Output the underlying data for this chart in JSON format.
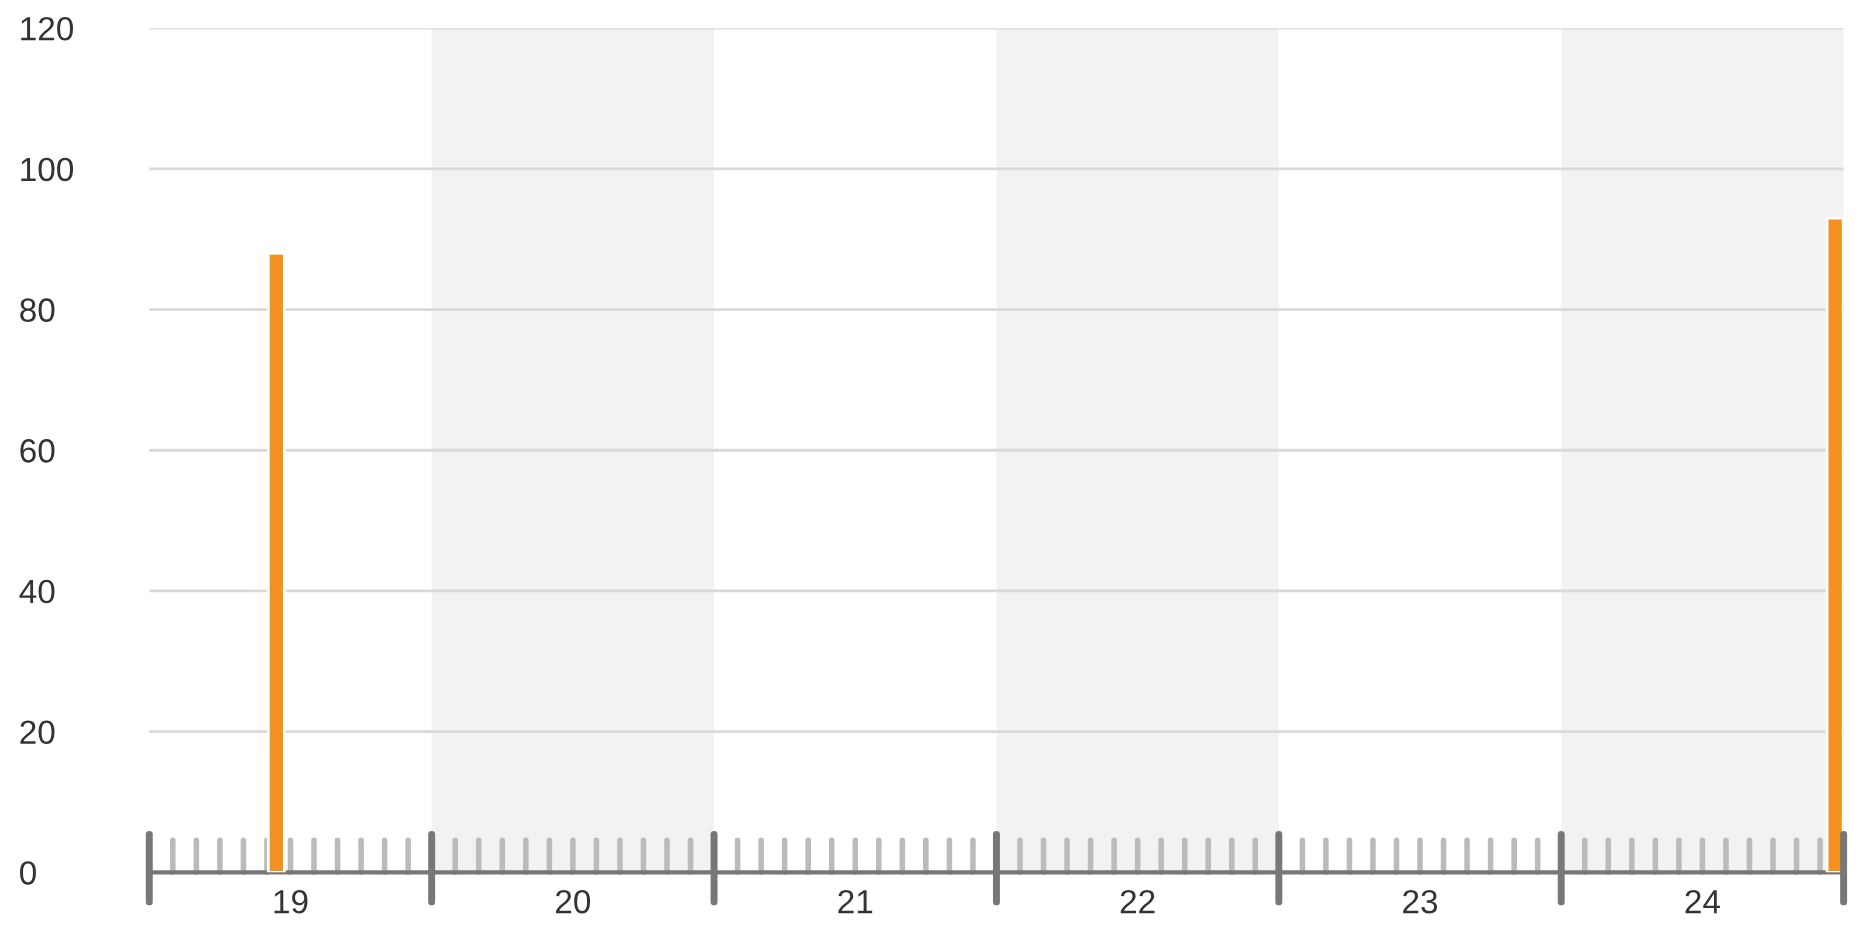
{
  "chart_data": {
    "type": "bar",
    "x": [
      19.45,
      24.97
    ],
    "values": [
      88,
      93
    ],
    "color": "#f29121",
    "xlim": [
      19,
      25
    ],
    "xticks": [
      {
        "value": 19.5,
        "label": "19"
      },
      {
        "value": 20.5,
        "label": "20"
      },
      {
        "value": 21.5,
        "label": "21"
      },
      {
        "value": 22.5,
        "label": "22"
      },
      {
        "value": 23.5,
        "label": "23"
      },
      {
        "value": 24.5,
        "label": "24"
      }
    ],
    "ylim": [
      0,
      120
    ],
    "yticks": [
      0,
      20,
      40,
      60,
      80,
      100,
      120
    ],
    "grid": "y",
    "bands": [
      {
        "axis": "x",
        "from": 20,
        "to": 21,
        "color": "#f2f2f2"
      },
      {
        "axis": "x",
        "from": 22,
        "to": 23,
        "color": "#f2f2f2"
      },
      {
        "axis": "x",
        "from": 24,
        "to": 25,
        "color": "#f2f2f2"
      }
    ]
  }
}
